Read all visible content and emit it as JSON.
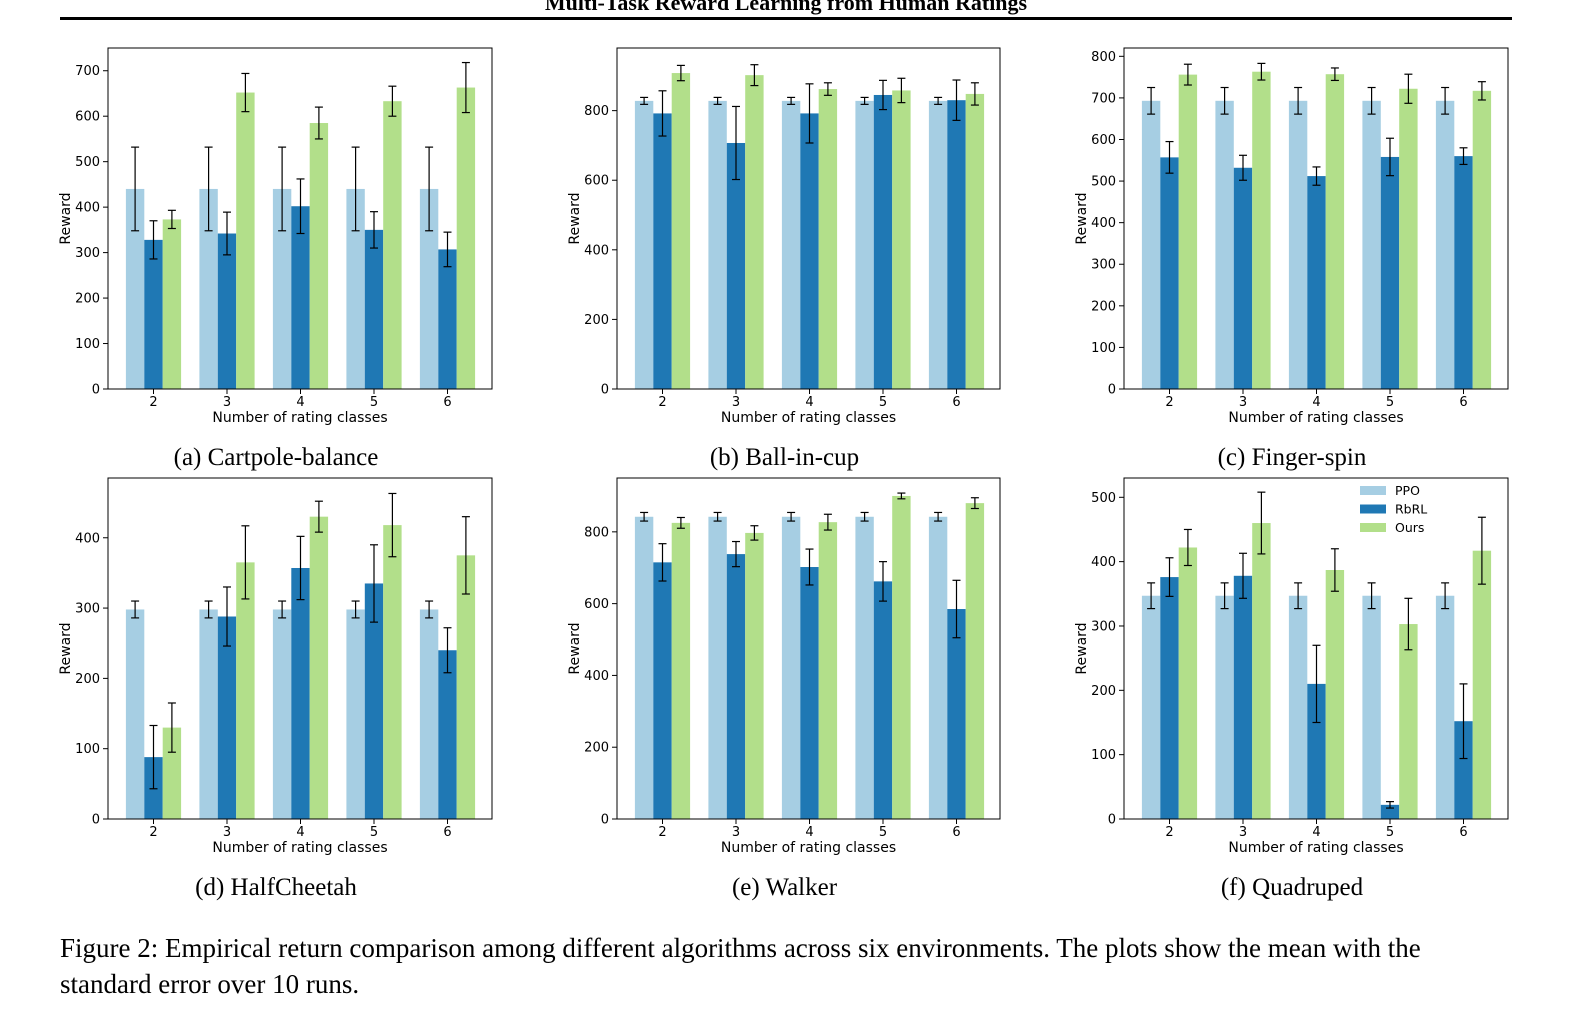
{
  "header": {
    "running_title": "Multi-Task Reward Learning from Human Ratings"
  },
  "caption": "Figure 2: Empirical return comparison among different algorithms across six environments. The plots show the mean with the standard error over 10 runs.",
  "colors": {
    "PPO": "#a6cee3",
    "RbRL": "#1f78b4",
    "Ours": "#b2df8a"
  },
  "legend": [
    "PPO",
    "RbRL",
    "Ours"
  ],
  "chart_data": [
    {
      "type": "bar",
      "caption": "(a) Cartpole-balance",
      "xlabel": "Number of rating classes",
      "ylabel": "Reward",
      "categories": [
        "2",
        "3",
        "4",
        "5",
        "6"
      ],
      "ylim": [
        0,
        750
      ],
      "yticks": [
        0,
        100,
        200,
        300,
        400,
        500,
        600,
        700
      ],
      "series": [
        {
          "name": "PPO",
          "values": [
            440,
            440,
            440,
            440,
            440
          ],
          "err": [
            92,
            92,
            92,
            92,
            92
          ]
        },
        {
          "name": "RbRL",
          "values": [
            328,
            342,
            402,
            350,
            307
          ],
          "err": [
            42,
            47,
            60,
            40,
            38
          ]
        },
        {
          "name": "Ours",
          "values": [
            373,
            652,
            585,
            633,
            663
          ],
          "err": [
            20,
            42,
            35,
            33,
            55
          ]
        }
      ]
    },
    {
      "type": "bar",
      "caption": "(b) Ball-in-cup",
      "xlabel": "Number of rating classes",
      "ylabel": "Reward",
      "categories": [
        "2",
        "3",
        "4",
        "5",
        "6"
      ],
      "ylim": [
        0,
        980
      ],
      "yticks": [
        0,
        200,
        400,
        600,
        800
      ],
      "series": [
        {
          "name": "PPO",
          "values": [
            828,
            828,
            828,
            828,
            828
          ],
          "err": [
            10,
            10,
            10,
            10,
            10
          ]
        },
        {
          "name": "RbRL",
          "values": [
            792,
            707,
            792,
            845,
            830
          ],
          "err": [
            65,
            105,
            85,
            42,
            58
          ]
        },
        {
          "name": "Ours",
          "values": [
            908,
            902,
            862,
            858,
            848
          ],
          "err": [
            22,
            30,
            18,
            35,
            32
          ]
        }
      ]
    },
    {
      "type": "bar",
      "caption": "(c) Finger-spin",
      "xlabel": "Number of rating classes",
      "ylabel": "Reward",
      "categories": [
        "2",
        "3",
        "4",
        "5",
        "6"
      ],
      "ylim": [
        0,
        820
      ],
      "yticks": [
        0,
        100,
        200,
        300,
        400,
        500,
        600,
        700,
        800
      ],
      "series": [
        {
          "name": "PPO",
          "values": [
            693,
            693,
            693,
            693,
            693
          ],
          "err": [
            32,
            32,
            32,
            32,
            32
          ]
        },
        {
          "name": "RbRL",
          "values": [
            557,
            532,
            512,
            558,
            560
          ],
          "err": [
            38,
            30,
            22,
            45,
            20
          ]
        },
        {
          "name": "Ours",
          "values": [
            756,
            763,
            757,
            722,
            717
          ],
          "err": [
            25,
            20,
            15,
            35,
            22
          ]
        }
      ]
    },
    {
      "type": "bar",
      "caption": "(d) HalfCheetah",
      "xlabel": "Number of rating classes",
      "ylabel": "Reward",
      "categories": [
        "2",
        "3",
        "4",
        "5",
        "6"
      ],
      "ylim": [
        0,
        485
      ],
      "yticks": [
        0,
        100,
        200,
        300,
        400
      ],
      "series": [
        {
          "name": "PPO",
          "values": [
            298,
            298,
            298,
            298,
            298
          ],
          "err": [
            12,
            12,
            12,
            12,
            12
          ]
        },
        {
          "name": "RbRL",
          "values": [
            88,
            288,
            357,
            335,
            240
          ],
          "err": [
            45,
            42,
            45,
            55,
            32
          ]
        },
        {
          "name": "Ours",
          "values": [
            130,
            365,
            430,
            418,
            375
          ],
          "err": [
            35,
            52,
            22,
            45,
            55
          ]
        }
      ]
    },
    {
      "type": "bar",
      "caption": "(e) Walker",
      "xlabel": "Number of rating classes",
      "ylabel": "Reward",
      "categories": [
        "2",
        "3",
        "4",
        "5",
        "6"
      ],
      "ylim": [
        0,
        950
      ],
      "yticks": [
        0,
        200,
        400,
        600,
        800
      ],
      "series": [
        {
          "name": "PPO",
          "values": [
            842,
            842,
            842,
            842,
            842
          ],
          "err": [
            12,
            12,
            12,
            12,
            12
          ]
        },
        {
          "name": "RbRL",
          "values": [
            715,
            738,
            702,
            662,
            585
          ],
          "err": [
            52,
            35,
            50,
            55,
            80
          ]
        },
        {
          "name": "Ours",
          "values": [
            825,
            797,
            827,
            900,
            880
          ],
          "err": [
            15,
            20,
            22,
            8,
            15
          ]
        }
      ]
    },
    {
      "type": "bar",
      "caption": "(f) Quadruped",
      "xlabel": "Number of rating classes",
      "ylabel": "Reward",
      "categories": [
        "2",
        "3",
        "4",
        "5",
        "6"
      ],
      "ylim": [
        0,
        530
      ],
      "yticks": [
        0,
        100,
        200,
        300,
        400,
        500
      ],
      "legend": "top-right",
      "series": [
        {
          "name": "PPO",
          "values": [
            347,
            347,
            347,
            347,
            347
          ],
          "err": [
            20,
            20,
            20,
            20,
            20
          ]
        },
        {
          "name": "RbRL",
          "values": [
            376,
            378,
            210,
            22,
            152
          ],
          "err": [
            30,
            35,
            60,
            5,
            58
          ]
        },
        {
          "name": "Ours",
          "values": [
            422,
            460,
            387,
            303,
            417
          ],
          "err": [
            28,
            48,
            33,
            40,
            52
          ]
        }
      ]
    }
  ]
}
